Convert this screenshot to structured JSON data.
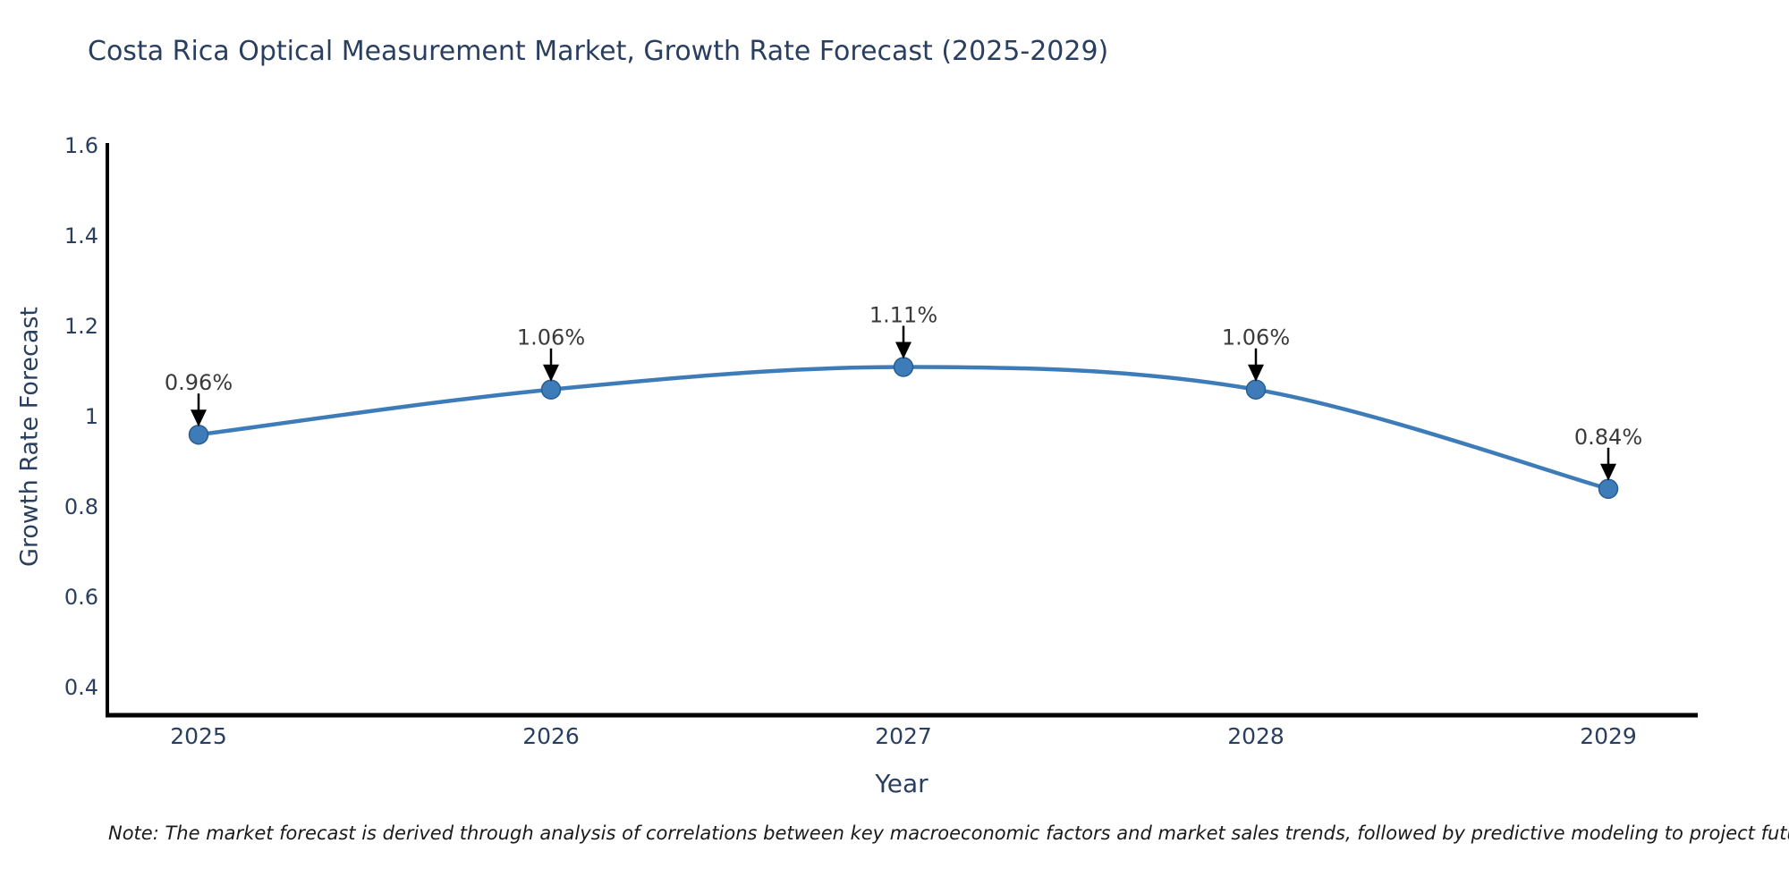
{
  "title": "Costa Rica Optical Measurement Market, Growth Rate Forecast (2025-2029)",
  "note": "Note: The market forecast is derived through analysis of correlations between key macroeconomic factors and market sales trends, followed by predictive modeling to project future sales",
  "chart_data": {
    "type": "line",
    "line_shape": "spline",
    "title": "Costa Rica Optical Measurement Market, Growth Rate Forecast (2025-2029)",
    "xlabel": "Year",
    "ylabel": "Growth Rate Forecast",
    "categories": [
      "2025",
      "2026",
      "2027",
      "2028",
      "2029"
    ],
    "x": [
      2025,
      2026,
      2027,
      2028,
      2029
    ],
    "values": [
      0.96,
      1.06,
      1.11,
      1.06,
      0.84
    ],
    "point_labels": [
      "0.96%",
      "1.06%",
      "1.11%",
      "1.06%",
      "0.84%"
    ],
    "y_ticks": [
      0.4,
      0.6,
      0.8,
      1,
      1.2,
      1.4,
      1.6
    ],
    "y_tick_labels": [
      "0.4",
      "0.6",
      "0.8",
      "1",
      "1.2",
      "1.4",
      "1.6"
    ],
    "ylim": [
      0.35,
      1.67
    ],
    "grid": false,
    "legend_position": "none",
    "colors": {
      "line": "#3d7cb8",
      "marker_fill": "#3d7cb8",
      "marker_edge": "#2a5d8f",
      "axis": "#000000",
      "tick_text": "#2a3f5f",
      "annotation_text": "#3a3a3a",
      "arrow": "#000000"
    }
  }
}
